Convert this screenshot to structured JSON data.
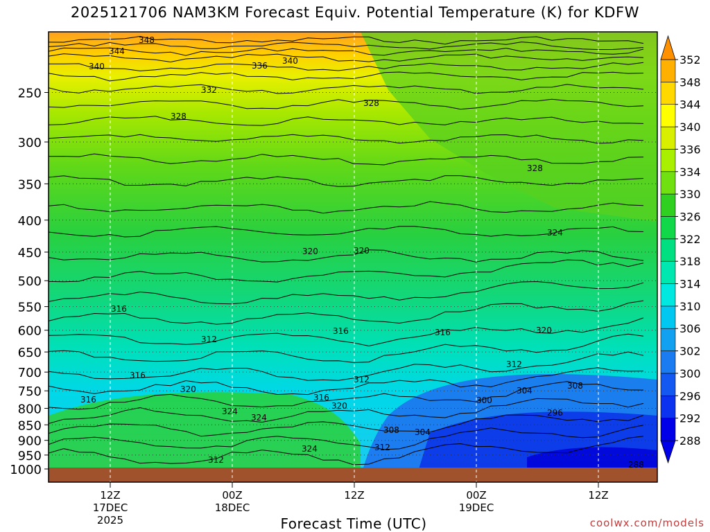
{
  "title": "2025121706 NAM3KM Forecast Equiv. Potential Temperature (K) for KDFW",
  "credit": "coolwx.com/models",
  "chart_data": {
    "type": "heatmap",
    "xlabel": "Forecast Time (UTC)",
    "ylabel": "",
    "y_scale": "log-pressure",
    "ylim": [
      1000,
      200
    ],
    "y_ticks": [
      250,
      300,
      350,
      400,
      450,
      500,
      550,
      600,
      650,
      700,
      750,
      800,
      850,
      900,
      950,
      1000
    ],
    "x_ticks": [
      {
        "label": "12Z",
        "sub": [
          "17DEC",
          "2025"
        ]
      },
      {
        "label": "00Z",
        "sub": [
          "18DEC"
        ]
      },
      {
        "label": "12Z",
        "sub": []
      },
      {
        "label": "00Z",
        "sub": [
          "19DEC"
        ]
      },
      {
        "label": "12Z",
        "sub": []
      }
    ],
    "colorbar": {
      "levels": [
        288,
        292,
        296,
        300,
        302,
        306,
        310,
        314,
        318,
        322,
        326,
        330,
        334,
        336,
        340,
        344,
        348,
        352
      ],
      "colors": [
        "#0000e8",
        "#0a32ef",
        "#1458f2",
        "#1a7cf0",
        "#12a0f0",
        "#00c8f0",
        "#00e8e0",
        "#00e8b0",
        "#00e080",
        "#10d848",
        "#30d020",
        "#70e010",
        "#a8f000",
        "#d8f000",
        "#ffff00",
        "#ffd800",
        "#ffb000",
        "#ff9000"
      ]
    },
    "contour_labels": [
      "348",
      "344",
      "340",
      "336",
      "340",
      "332",
      "328",
      "328",
      "328",
      "324",
      "320",
      "320",
      "316",
      "316",
      "316",
      "320",
      "312",
      "312",
      "312",
      "316",
      "320",
      "316",
      "324",
      "324",
      "320",
      "316",
      "324",
      "312",
      "308",
      "304",
      "300",
      "304",
      "308",
      "296",
      "312",
      "288"
    ],
    "ground": {
      "color": "#a0522d"
    }
  }
}
